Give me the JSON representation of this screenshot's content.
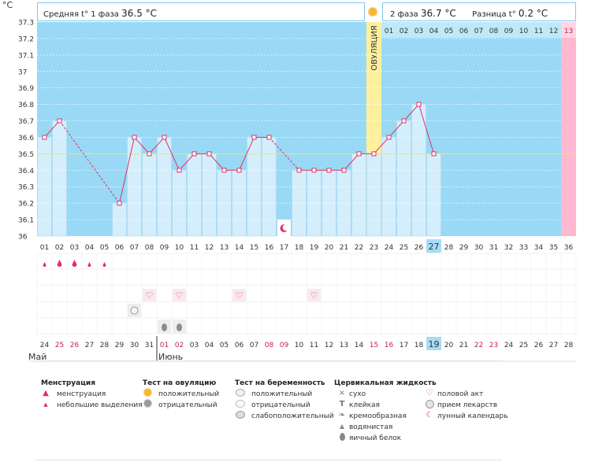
{
  "header": {
    "unit": "°C",
    "phase1_label": "Средняя t° 1 фаза",
    "phase1_value": "36.5 °C",
    "phase2_label": "2 фаза",
    "phase2_value": "36.7 °C",
    "diff_label": "Разница t°",
    "diff_value": "0.2 °C"
  },
  "ovulation_label": "ОВУЛЯЦИЯ",
  "colors": {
    "phase1_bg": "#99d9f5",
    "phase2_bg": "#bfe8f9",
    "bar": "#d4eefc",
    "ovulation": "#fff09e",
    "next_cycle": "#ffb8cf",
    "line": "#e0306a",
    "baseline": "#e8e86a"
  },
  "chart_data": {
    "type": "bar",
    "ylim": [
      36,
      37.3
    ],
    "yticks": [
      "37.3",
      "37.2",
      "37.1",
      "37",
      "36.9",
      "36.8",
      "36.7",
      "36.6",
      "36.5",
      "36.4",
      "36.3",
      "36.2",
      "36.1",
      "36"
    ],
    "baseline": 36.5,
    "cycle_days": [
      "01",
      "02",
      "03",
      "04",
      "05",
      "06",
      "07",
      "08",
      "09",
      "10",
      "11",
      "12",
      "13",
      "14",
      "15",
      "16",
      "17",
      "18",
      "19",
      "20",
      "21",
      "22",
      "23",
      "24",
      "25",
      "26",
      "27",
      "28",
      "29",
      "30",
      "31",
      "32",
      "33",
      "34",
      "35",
      "36"
    ],
    "values": [
      36.6,
      36.7,
      null,
      null,
      null,
      36.2,
      36.6,
      36.5,
      36.6,
      36.4,
      36.5,
      36.5,
      36.4,
      36.4,
      36.6,
      36.6,
      null,
      36.4,
      36.4,
      36.4,
      36.4,
      36.5,
      36.5,
      36.6,
      36.7,
      36.8,
      36.5,
      null,
      null,
      null,
      null,
      null,
      null,
      null,
      null,
      null
    ],
    "current_day_index": 26,
    "ovulation_day_index": 22,
    "phase2_labels": [
      "01",
      "02",
      "03",
      "04",
      "05",
      "06",
      "07",
      "08",
      "09",
      "10",
      "11",
      "12",
      "13"
    ],
    "dates": [
      "24",
      "25",
      "26",
      "27",
      "28",
      "29",
      "30",
      "31",
      "01",
      "02",
      "03",
      "04",
      "05",
      "06",
      "07",
      "08",
      "09",
      "10",
      "11",
      "12",
      "13",
      "14",
      "15",
      "16",
      "17",
      "18",
      "19",
      "20",
      "21",
      "22",
      "23",
      "24",
      "25",
      "26",
      "27",
      "28"
    ],
    "weekend_indices": [
      1,
      2,
      8,
      9,
      15,
      16,
      22,
      23,
      29,
      30
    ],
    "month_labels": [
      {
        "index": 0,
        "label": "Май"
      },
      {
        "index": 8,
        "label": "Июнь"
      }
    ],
    "current_date_index": 26
  },
  "legend": {
    "menstruation": {
      "title": "Менструация",
      "items": [
        "менструация",
        "небольшие выделения"
      ]
    },
    "ovulation_test": {
      "title": "Тест на овуляцию",
      "items": [
        "положительный",
        "отрицательный"
      ]
    },
    "pregnancy_test": {
      "title": "Тест на беременность",
      "items": [
        "положительный",
        "отрицательный",
        "слабоположительный"
      ]
    },
    "cervical": {
      "title": "Цервикальная жидкость",
      "items": [
        "сухо",
        "клейкая",
        "кремообразная",
        "водянистая",
        "яичный белок"
      ]
    },
    "other": {
      "items": [
        "половой акт",
        "прием лекарств",
        "лунный календарь"
      ]
    }
  }
}
